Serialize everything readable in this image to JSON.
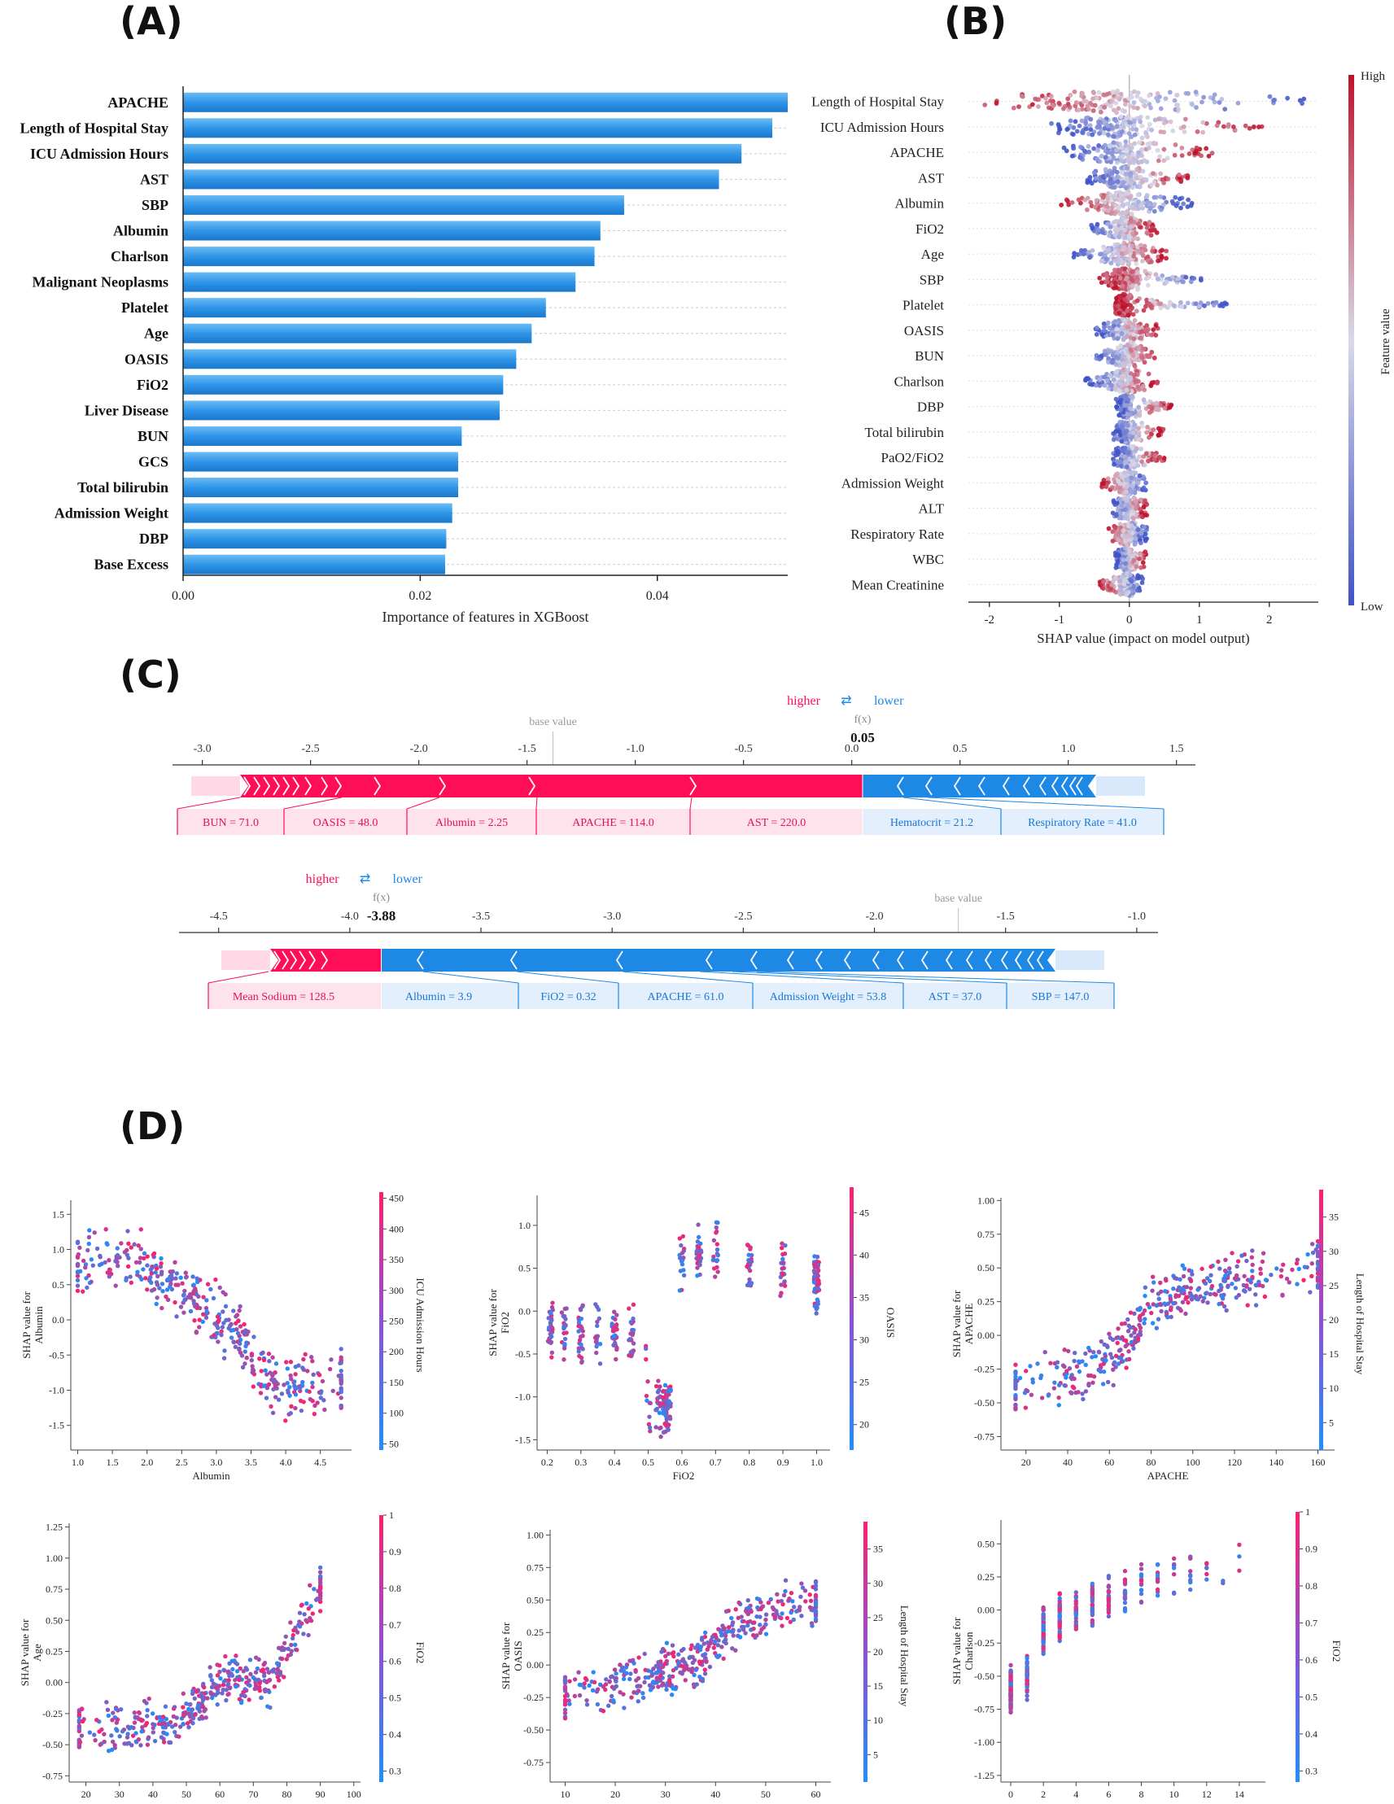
{
  "panel_labels": [
    "(A)",
    "(B)",
    "(C)",
    "(D)"
  ],
  "colors": {
    "bar_blue": "#2f95e8",
    "shap_high": "#c0112b",
    "shap_low": "#3f53c7",
    "force_red": "#ff0d57",
    "force_blue": "#1e88e5",
    "dep_blue": "#1e8fff",
    "dep_pink": "#ff1f6e"
  },
  "chart_data": [
    {
      "id": "A",
      "type": "bar",
      "orientation": "horizontal",
      "categories": [
        "APACHE",
        "Length of Hospital Stay",
        "ICU Admission Hours",
        "AST",
        "SBP",
        "Albumin",
        "Charlson",
        "Malignant Neoplasms",
        "Platelet",
        "Age",
        "OASIS",
        "FiO2",
        "Liver Disease",
        "BUN",
        "GCS",
        "Total bilirubin",
        "Admission Weight",
        "DBP",
        "Base Excess"
      ],
      "values": [
        0.051,
        0.0497,
        0.0471,
        0.0452,
        0.0372,
        0.0352,
        0.0347,
        0.0331,
        0.0306,
        0.0294,
        0.0281,
        0.027,
        0.0267,
        0.0235,
        0.0232,
        0.0232,
        0.0227,
        0.0222,
        0.0221
      ],
      "xlabel": "Importance of features in XGBoost",
      "xlim": [
        0,
        0.051
      ],
      "xticks": [
        0.0,
        0.02,
        0.04
      ],
      "xtick_labels": [
        "0.00",
        "0.02",
        "0.04"
      ]
    },
    {
      "id": "B",
      "type": "scatter",
      "subtype": "shap-beeswarm",
      "features": [
        "Length of Hospital Stay",
        "ICU Admission Hours",
        "APACHE",
        "AST",
        "Albumin",
        "FiO2",
        "Age",
        "SBP",
        "Platelet",
        "OASIS",
        "BUN",
        "Charlson",
        "DBP",
        "Total bilirubin",
        "PaO2/FiO2",
        "Admission Weight",
        "ALT",
        "Respiratory Rate",
        "WBC",
        "Mean Creatinine"
      ],
      "shap_ranges": [
        [
          -2.1,
          2.5
        ],
        [
          -1.2,
          2.0
        ],
        [
          -0.95,
          1.2
        ],
        [
          -0.6,
          0.85
        ],
        [
          -1.0,
          0.9
        ],
        [
          -0.55,
          0.4
        ],
        [
          -0.8,
          0.55
        ],
        [
          -0.45,
          1.1
        ],
        [
          -0.2,
          1.4
        ],
        [
          -0.5,
          0.45
        ],
        [
          -0.5,
          0.4
        ],
        [
          -0.65,
          0.45
        ],
        [
          -0.2,
          0.6
        ],
        [
          -0.25,
          0.5
        ],
        [
          -0.25,
          0.5
        ],
        [
          -0.4,
          0.25
        ],
        [
          -0.25,
          0.25
        ],
        [
          -0.3,
          0.25
        ],
        [
          -0.2,
          0.25
        ],
        [
          -0.45,
          0.2
        ]
      ],
      "high_side": [
        "left",
        "right",
        "right",
        "right",
        "left",
        "right",
        "right",
        "left",
        "left",
        "right",
        "right",
        "right",
        "right",
        "right",
        "right",
        "left",
        "right",
        "left",
        "right",
        "left"
      ],
      "xlabel": "SHAP value (impact on model output)",
      "xlim": [
        -2.3,
        2.7
      ],
      "xticks": [
        -2,
        -1,
        0,
        1,
        2
      ],
      "xtick_labels": [
        "-2",
        "-1",
        "0",
        "1",
        "2"
      ],
      "colorbar": {
        "label": "Feature value",
        "high": "High",
        "low": "Low"
      }
    },
    {
      "id": "C1",
      "type": "bar",
      "subtype": "shap-force",
      "legend": {
        "higher": "higher",
        "lower": "lower",
        "arrows": "⇄"
      },
      "fx_label": "f(x)",
      "fx_value": 0.05,
      "fx_text": "0.05",
      "base_label": "base value",
      "base_value": -1.38,
      "xlim": [
        -3.1,
        1.55
      ],
      "xticks": [
        -3.0,
        -2.5,
        -2.0,
        -1.5,
        -1.0,
        -0.5,
        0.0,
        0.5,
        1.0,
        1.5
      ],
      "xtick_labels": [
        "-3.0",
        "-2.5",
        "-2.0",
        "-1.5",
        "-1.0",
        "-0.5",
        "0.0",
        "0.5",
        "1.0",
        "1.5"
      ],
      "push_higher": [
        "BUN = 71.0",
        "OASIS = 48.0",
        "Albumin = 2.25",
        "APACHE = 114.0",
        "AST = 220.0"
      ],
      "push_lower": [
        "Hematocrit = 21.2",
        "Respiratory Rate = 41.0"
      ]
    },
    {
      "id": "C2",
      "type": "bar",
      "subtype": "shap-force",
      "legend": {
        "higher": "higher",
        "lower": "lower",
        "arrows": "⇄"
      },
      "fx_label": "f(x)",
      "fx_value": -3.88,
      "fx_text": "-3.88",
      "base_label": "base value",
      "base_value": -1.68,
      "xlim": [
        -4.62,
        -0.95
      ],
      "xticks": [
        -4.5,
        -4.0,
        -3.5,
        -3.0,
        -2.5,
        -2.0,
        -1.5,
        -1.0
      ],
      "xtick_labels": [
        "-4.5",
        "-4.0",
        "-3.5",
        "-3.0",
        "-2.5",
        "-2.0",
        "-1.5",
        "-1.0"
      ],
      "push_higher": [
        "Mean Sodium = 128.5"
      ],
      "push_lower": [
        "Albumin = 3.9",
        "FiO2 = 0.32",
        "APACHE = 61.0",
        "Admission Weight = 53.8",
        "AST = 37.0",
        "SBP = 147.0"
      ]
    },
    {
      "id": "D1",
      "type": "scatter",
      "subtype": "shap-dependence",
      "xlabel": "Albumin",
      "ylabel": "SHAP value for\nAlbumin",
      "xlim": [
        0.9,
        4.95
      ],
      "ylim": [
        -1.85,
        1.7
      ],
      "xticks": [
        1.0,
        1.5,
        2.0,
        2.5,
        3.0,
        3.5,
        4.0,
        4.5
      ],
      "xtick_labels": [
        "1.0",
        "1.5",
        "2.0",
        "2.5",
        "3.0",
        "3.5",
        "4.0",
        "4.5"
      ],
      "yticks": [
        -1.5,
        -1.0,
        -0.5,
        0.0,
        0.5,
        1.0,
        1.5
      ],
      "ytick_labels": [
        "-1.5",
        "-1.0",
        "-0.5",
        "0.0",
        "0.5",
        "1.0",
        "1.5"
      ],
      "trend": [
        [
          1.0,
          0.8
        ],
        [
          1.8,
          0.85
        ],
        [
          2.6,
          0.35
        ],
        [
          3.3,
          -0.2
        ],
        [
          3.6,
          -0.8
        ],
        [
          4.0,
          -1.0
        ],
        [
          4.8,
          -0.9
        ]
      ],
      "cbar": {
        "label": "ICU Admission Hours",
        "min": 40,
        "max": 460,
        "ticks": [
          50,
          100,
          150,
          200,
          250,
          300,
          350,
          400,
          450
        ]
      }
    },
    {
      "id": "D2",
      "type": "scatter",
      "subtype": "shap-dependence",
      "xlabel": "FiO2",
      "ylabel": "SHAP value for\nFiO2",
      "xlim": [
        0.17,
        1.04
      ],
      "ylim": [
        -1.62,
        1.35
      ],
      "xticks": [
        0.2,
        0.3,
        0.4,
        0.5,
        0.6,
        0.7,
        0.8,
        0.9,
        1.0
      ],
      "xtick_labels": [
        "0.2",
        "0.3",
        "0.4",
        "0.5",
        "0.6",
        "0.7",
        "0.8",
        "0.9",
        "1.0"
      ],
      "yticks": [
        -1.5,
        -1.0,
        -0.5,
        0.0,
        0.5,
        1.0
      ],
      "ytick_labels": [
        "-1.5",
        "-1.0",
        "-0.5",
        "0.0",
        "0.5",
        "1.0"
      ],
      "trend": [
        [
          0.2,
          -0.2
        ],
        [
          0.49,
          -0.3
        ],
        [
          0.5,
          -1.1
        ],
        [
          0.57,
          -1.1
        ],
        [
          0.58,
          0.6
        ],
        [
          0.7,
          0.7
        ],
        [
          1.0,
          0.35
        ]
      ],
      "cbar": {
        "label": "OASIS",
        "min": 17,
        "max": 48,
        "ticks": [
          20,
          25,
          30,
          35,
          40,
          45
        ]
      }
    },
    {
      "id": "D3",
      "type": "scatter",
      "subtype": "shap-dependence",
      "xlabel": "APACHE",
      "ylabel": "SHAP value for\nAPACHE",
      "xlim": [
        8,
        168
      ],
      "ylim": [
        -0.85,
        1.02
      ],
      "xticks": [
        20,
        40,
        60,
        80,
        100,
        120,
        140,
        160
      ],
      "xtick_labels": [
        "20",
        "40",
        "60",
        "80",
        "100",
        "120",
        "140",
        "160"
      ],
      "yticks": [
        -0.75,
        -0.5,
        -0.25,
        0.0,
        0.25,
        0.5,
        0.75,
        1.0
      ],
      "ytick_labels": [
        "-0.75",
        "-0.50",
        "-0.25",
        "0.00",
        "0.25",
        "0.50",
        "0.75",
        "1.00"
      ],
      "trend": [
        [
          15,
          -0.4
        ],
        [
          60,
          -0.2
        ],
        [
          80,
          0.2
        ],
        [
          100,
          0.35
        ],
        [
          160,
          0.5
        ]
      ],
      "cbar": {
        "label": "Length of Hospital Stay",
        "min": 1,
        "max": 39,
        "ticks": [
          5,
          10,
          15,
          20,
          25,
          30,
          35
        ]
      }
    },
    {
      "id": "D4",
      "type": "scatter",
      "subtype": "shap-dependence",
      "xlabel": "Age",
      "ylabel": "SHAP value for\nAge",
      "xlim": [
        15,
        102
      ],
      "ylim": [
        -0.8,
        1.28
      ],
      "xticks": [
        20,
        30,
        40,
        50,
        60,
        70,
        80,
        90,
        100
      ],
      "xtick_labels": [
        "20",
        "30",
        "40",
        "50",
        "60",
        "70",
        "80",
        "90",
        "100"
      ],
      "yticks": [
        -0.75,
        -0.5,
        -0.25,
        0.0,
        0.25,
        0.5,
        0.75,
        1.0,
        1.25
      ],
      "ytick_labels": [
        "-0.75",
        "-0.50",
        "-0.25",
        "0.00",
        "0.25",
        "0.50",
        "0.75",
        "1.00",
        "1.25"
      ],
      "trend": [
        [
          18,
          -0.35
        ],
        [
          45,
          -0.35
        ],
        [
          55,
          -0.15
        ],
        [
          62,
          0.05
        ],
        [
          75,
          0.0
        ],
        [
          80,
          0.3
        ],
        [
          90,
          0.75
        ]
      ],
      "cbar": {
        "label": "FiO2",
        "min": 0.27,
        "max": 1.0,
        "ticks": [
          0.3,
          0.4,
          0.5,
          0.6,
          0.7,
          0.8,
          0.9,
          1.0
        ]
      }
    },
    {
      "id": "D5",
      "type": "scatter",
      "subtype": "shap-dependence",
      "xlabel": "OASIS",
      "ylabel": "SHAP value for\nOASIS",
      "xlim": [
        7,
        63
      ],
      "ylim": [
        -0.9,
        1.04
      ],
      "xticks": [
        10,
        20,
        30,
        40,
        50,
        60
      ],
      "xtick_labels": [
        "10",
        "20",
        "30",
        "40",
        "50",
        "60"
      ],
      "yticks": [
        -0.75,
        -0.5,
        -0.25,
        0.0,
        0.25,
        0.5,
        0.75,
        1.0
      ],
      "ytick_labels": [
        "-0.75",
        "-0.50",
        "-0.25",
        "0.00",
        "0.25",
        "0.50",
        "0.75",
        "1.00"
      ],
      "trend": [
        [
          10,
          -0.2
        ],
        [
          25,
          -0.1
        ],
        [
          35,
          0.0
        ],
        [
          45,
          0.35
        ],
        [
          60,
          0.5
        ]
      ],
      "cbar": {
        "label": "Length of Hospital Stay",
        "min": 1,
        "max": 39,
        "ticks": [
          5,
          10,
          15,
          20,
          25,
          30,
          35
        ]
      }
    },
    {
      "id": "D6",
      "type": "scatter",
      "subtype": "shap-dependence",
      "xlabel": "Charlson",
      "ylabel": "SHAP value for\nCharlson",
      "xlim": [
        -0.6,
        15.6
      ],
      "ylim": [
        -1.3,
        0.68
      ],
      "xticks": [
        0,
        2,
        4,
        6,
        8,
        10,
        12,
        14
      ],
      "xtick_labels": [
        "0",
        "2",
        "4",
        "6",
        "8",
        "10",
        "12",
        "14"
      ],
      "yticks": [
        -1.25,
        -1.0,
        -0.75,
        -0.5,
        -0.25,
        0.0,
        0.25,
        0.5
      ],
      "ytick_labels": [
        "-1.25",
        "-1.00",
        "-0.75",
        "-0.50",
        "-0.25",
        "0.00",
        "0.25",
        "0.50"
      ],
      "trend": [
        [
          0,
          -0.6
        ],
        [
          1,
          -0.5
        ],
        [
          2,
          -0.15
        ],
        [
          3,
          -0.05
        ],
        [
          5,
          0.05
        ],
        [
          8,
          0.2
        ],
        [
          10,
          0.3
        ],
        [
          15,
          0.35
        ]
      ],
      "cbar": {
        "label": "FiO2",
        "min": 0.27,
        "max": 1.0,
        "ticks": [
          0.3,
          0.4,
          0.5,
          0.6,
          0.7,
          0.8,
          0.9,
          1.0
        ]
      }
    }
  ]
}
